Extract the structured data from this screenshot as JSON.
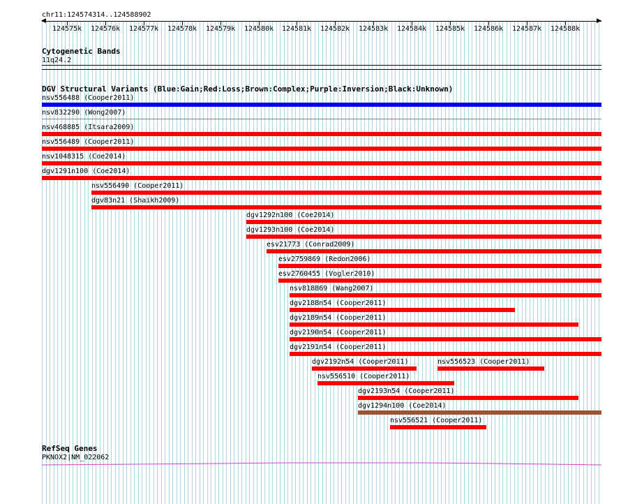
{
  "ruler": {
    "location": "chr11:124574314..124588902",
    "ticks": [
      "124575k",
      "124576k",
      "124577k",
      "124578k",
      "124579k",
      "124580k",
      "124581k",
      "124582k",
      "124583k",
      "124584k",
      "124585k",
      "124586k",
      "124587k",
      "124588k"
    ]
  },
  "tracks": {
    "cytobands": {
      "title": "Cytogenetic Bands",
      "band": "11q24.2"
    },
    "dgv": {
      "title": "DGV Structural Variants (Blue:Gain;Red:Loss;Brown:Complex;Purple:Inversion;Black:Unknown)",
      "colors": {
        "gain": "#0000ee",
        "loss": "#ff0000",
        "complex": "#a0522d",
        "inversion": "#800080",
        "unknown": "#000000"
      },
      "features": [
        {
          "label": "nsv556488 (Cooper2011)",
          "type": "gain"
        },
        {
          "label": "nsv832290 (Wong2007)",
          "type": "none"
        },
        {
          "label": "nsv468885 (Itsara2009)",
          "type": "loss"
        },
        {
          "label": "nsv556489 (Cooper2011)",
          "type": "loss"
        },
        {
          "label": "nsv1048315 (Coe2014)",
          "type": "loss"
        },
        {
          "label": "dgv1291n100 (Coe2014)",
          "type": "loss"
        },
        {
          "label": "nsv556490 (Cooper2011)",
          "type": "loss"
        },
        {
          "label": "dgv83n21 (Shaikh2009)",
          "type": "loss"
        },
        {
          "label": "dgv1292n100 (Coe2014)",
          "type": "loss"
        },
        {
          "label": "dgv1293n100 (Coe2014)",
          "type": "loss"
        },
        {
          "label": "esv21773 (Conrad2009)",
          "type": "loss"
        },
        {
          "label": "esv2759869 (Redon2006)",
          "type": "loss"
        },
        {
          "label": "esv2760455 (Vogler2010)",
          "type": "loss"
        },
        {
          "label": "nsv818869 (Wang2007)",
          "type": "loss"
        },
        {
          "label": "dgv2188n54 (Cooper2011)",
          "type": "loss"
        },
        {
          "label": "dgv2189n54 (Cooper2011)",
          "type": "loss"
        },
        {
          "label": "dgv2190n54 (Cooper2011)",
          "type": "loss"
        },
        {
          "label": "dgv2191n54 (Cooper2011)",
          "type": "loss"
        },
        {
          "label": "dgv2192n54 (Cooper2011)",
          "type": "loss"
        },
        {
          "label": "nsv556523 (Cooper2011)",
          "type": "loss"
        },
        {
          "label": "nsv556510 (Cooper2011)",
          "type": "loss"
        },
        {
          "label": "dgv2193n54 (Cooper2011)",
          "type": "loss"
        },
        {
          "label": "dgv1294n100 (Coe2014)",
          "type": "complex"
        },
        {
          "label": "nsv556521 (Cooper2011)",
          "type": "loss"
        }
      ]
    },
    "refseq": {
      "title": "RefSeq Genes",
      "gene": "PKNOX2|NM_022062",
      "color": "#cc44cc"
    }
  }
}
